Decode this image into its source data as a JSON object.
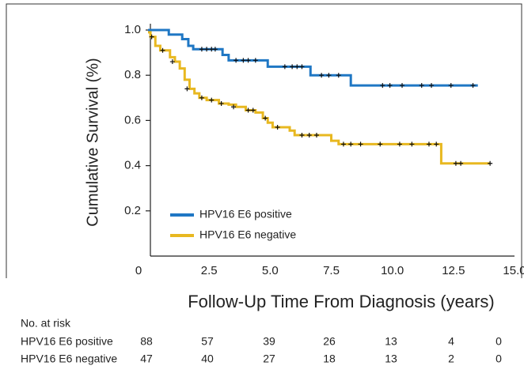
{
  "chart_data": {
    "type": "step",
    "ylabel": "Cumulative Survival (%)",
    "xlabel": "Follow-Up Time From Diagnosis (years)",
    "xlim": [
      0,
      15
    ],
    "ylim": [
      0,
      1.0
    ],
    "xticks": [
      0,
      2.5,
      {
        "value": 5,
        "label": "5.0"
      },
      7.5,
      {
        "value": 10,
        "label": "10.0"
      },
      12.5,
      {
        "value": 15,
        "label": "15.0"
      }
    ],
    "yticks": [
      0.2,
      0.4,
      0.6,
      0.8,
      {
        "value": 1,
        "label": "1.0"
      }
    ],
    "series": [
      {
        "name": "HPV16 E6 positive",
        "color": "#1f77c4",
        "x": [
          0,
          0.85,
          1.4,
          1.65,
          1.85,
          3.05,
          3.3,
          4.9,
          6.65,
          8.3,
          13.5
        ],
        "values": [
          1.0,
          0.98,
          0.96,
          0.93,
          0.915,
          0.89,
          0.866,
          0.838,
          0.8,
          0.755,
          0.755
        ],
        "censored": {
          "x": [
            2.2,
            2.4,
            2.6,
            2.75,
            3.6,
            3.9,
            4.1,
            4.4,
            5.6,
            5.9,
            6.1,
            6.3,
            7.1,
            7.4,
            7.8,
            9.6,
            9.9,
            10.4,
            11.2,
            11.6,
            12.4,
            13.3
          ],
          "values": [
            0.915,
            0.915,
            0.915,
            0.915,
            0.866,
            0.866,
            0.866,
            0.866,
            0.838,
            0.838,
            0.838,
            0.838,
            0.8,
            0.8,
            0.8,
            0.755,
            0.755,
            0.755,
            0.755,
            0.755,
            0.755,
            0.755
          ]
        }
      },
      {
        "name": "HPV16 E6 negative",
        "color": "#e8b820",
        "x": [
          0,
          0.1,
          0.3,
          0.5,
          0.9,
          1.1,
          1.3,
          1.5,
          1.7,
          1.9,
          2.1,
          2.4,
          2.9,
          3.3,
          3.6,
          4.0,
          4.4,
          4.7,
          4.9,
          5.1,
          5.8,
          6.0,
          7.5,
          7.8,
          12.0,
          14.0
        ],
        "values": [
          0.99,
          0.97,
          0.93,
          0.91,
          0.88,
          0.86,
          0.83,
          0.78,
          0.74,
          0.72,
          0.7,
          0.69,
          0.675,
          0.67,
          0.66,
          0.645,
          0.635,
          0.61,
          0.59,
          0.57,
          0.555,
          0.535,
          0.51,
          0.495,
          0.41,
          0.41
        ],
        "censored": {
          "x": [
            0.15,
            0.6,
            1.0,
            1.6,
            2.2,
            2.6,
            3.0,
            3.5,
            4.1,
            4.3,
            4.8,
            5.3,
            6.3,
            6.6,
            6.9,
            8.0,
            8.3,
            8.7,
            9.5,
            10.3,
            10.8,
            11.5,
            11.8,
            12.6,
            12.8,
            14.0
          ],
          "values": [
            0.97,
            0.91,
            0.86,
            0.74,
            0.7,
            0.69,
            0.675,
            0.66,
            0.645,
            0.645,
            0.61,
            0.57,
            0.535,
            0.535,
            0.535,
            0.495,
            0.495,
            0.495,
            0.495,
            0.495,
            0.495,
            0.495,
            0.495,
            0.41,
            0.41,
            0.41
          ]
        }
      }
    ],
    "risk_table": {
      "title": "No. at risk",
      "rows": [
        {
          "label": "HPV16 E6 positive",
          "values": [
            88,
            57,
            39,
            26,
            13,
            4,
            0
          ]
        },
        {
          "label": "HPV16 E6 negative",
          "values": [
            47,
            40,
            27,
            18,
            13,
            2,
            0
          ]
        }
      ]
    }
  }
}
